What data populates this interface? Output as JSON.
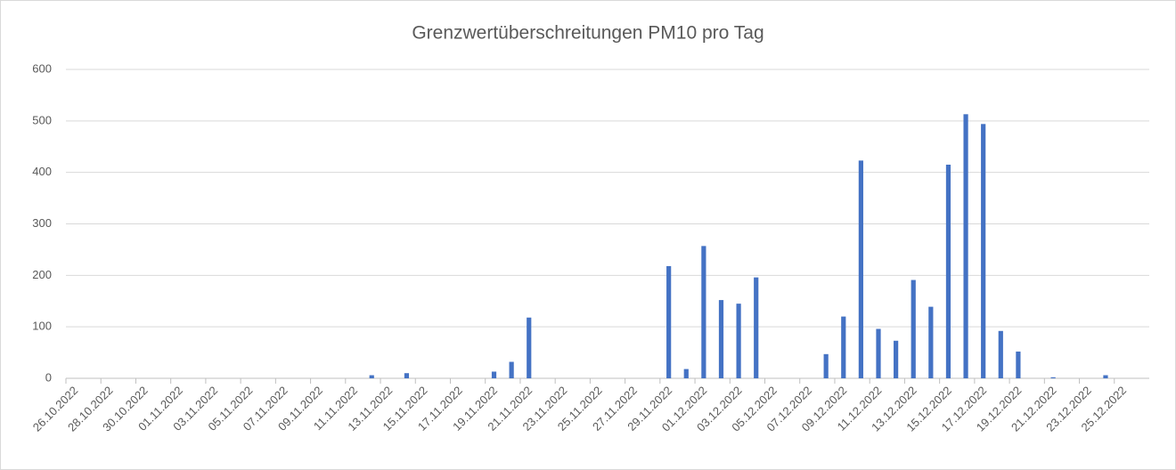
{
  "chart_data": {
    "type": "bar",
    "title": "Grenzwertüberschreitungen PM10 pro Tag",
    "categories": [
      "26.10.2022",
      null,
      "28.10.2022",
      null,
      "30.10.2022",
      null,
      "01.11.2022",
      null,
      "03.11.2022",
      null,
      "05.11.2022",
      null,
      "07.11.2022",
      null,
      "09.11.2022",
      null,
      "11.11.2022",
      null,
      "13.11.2022",
      null,
      "15.11.2022",
      null,
      "17.11.2022",
      null,
      "19.11.2022",
      null,
      "21.11.2022",
      null,
      "23.11.2022",
      null,
      "25.11.2022",
      null,
      "27.11.2022",
      null,
      "29.11.2022",
      null,
      "01.12.2022",
      null,
      "03.12.2022",
      null,
      "05.12.2022",
      null,
      "07.12.2022",
      null,
      "09.12.2022",
      null,
      "11.12.2022",
      null,
      "13.12.2022",
      null,
      "15.12.2022",
      null,
      "17.12.2022",
      null,
      "19.12.2022",
      null,
      "21.12.2022",
      null,
      "23.12.2022",
      null,
      "25.12.2022",
      null
    ],
    "values": [
      0,
      0,
      0,
      0,
      0,
      0,
      0,
      0,
      0,
      0,
      0,
      0,
      0,
      0,
      0,
      0,
      0,
      6,
      0,
      10,
      0,
      0,
      0,
      0,
      13,
      32,
      118,
      0,
      0,
      0,
      0,
      0,
      0,
      0,
      218,
      18,
      257,
      152,
      145,
      196,
      0,
      0,
      0,
      47,
      120,
      423,
      96,
      73,
      191,
      139,
      415,
      513,
      494,
      92,
      52,
      0,
      2,
      0,
      0,
      6,
      0,
      0
    ],
    "color": "#4472c4",
    "ylim": [
      0,
      600
    ],
    "yticks": [
      0,
      100,
      200,
      300,
      400,
      500,
      600
    ],
    "grid": true
  }
}
